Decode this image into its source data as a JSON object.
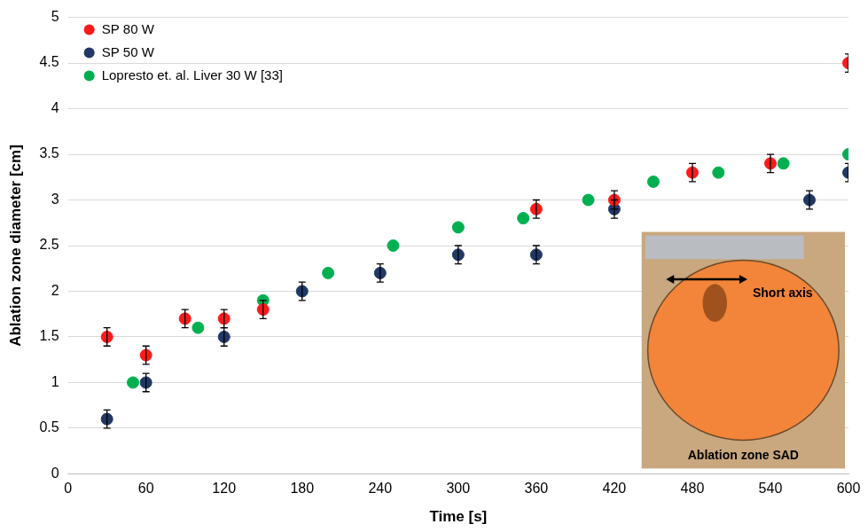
{
  "chart_data": {
    "type": "scatter",
    "x_label": "Time [s]",
    "y_label": "Ablation zone diameter [cm]",
    "xlim": [
      0,
      600
    ],
    "xticks": [
      0,
      60,
      120,
      180,
      240,
      300,
      360,
      420,
      480,
      540,
      600
    ],
    "ylim": [
      0,
      5
    ],
    "yticks": [
      0,
      0.5,
      1,
      1.5,
      2,
      2.5,
      3,
      3.5,
      4,
      4.5,
      5
    ],
    "grid": "y",
    "legend": "upper left",
    "series": [
      {
        "name": "SP 80 W",
        "color": "#ff1a1a",
        "marker": "circle",
        "x": [
          30,
          60,
          90,
          120,
          150,
          360,
          420,
          480,
          540,
          600
        ],
        "values": [
          1.5,
          1.3,
          1.7,
          1.7,
          1.8,
          2.9,
          3.0,
          3.3,
          3.4,
          4.5
        ],
        "errors": [
          0.1,
          0.1,
          0.1,
          0.1,
          0.1,
          0.1,
          0.1,
          0.1,
          0.1,
          0.1
        ]
      },
      {
        "name": "SP 50 W",
        "color": "#203864",
        "marker": "circle",
        "x": [
          30,
          60,
          120,
          180,
          240,
          300,
          360,
          420,
          570,
          600
        ],
        "values": [
          0.6,
          1.0,
          1.5,
          2.0,
          2.2,
          2.4,
          2.4,
          2.9,
          3.0,
          3.3
        ],
        "errors": [
          0.1,
          0.1,
          0.1,
          0.1,
          0.1,
          0.1,
          0.1,
          0.1,
          0.1,
          0.1
        ]
      },
      {
        "name": "Lopresto et. al. Liver 30 W [33]",
        "color": "#00b050",
        "marker": "circle",
        "x": [
          50,
          100,
          150,
          200,
          250,
          300,
          350,
          400,
          450,
          500,
          550,
          600
        ],
        "values": [
          1.0,
          1.6,
          1.9,
          2.2,
          2.5,
          2.7,
          2.8,
          3.0,
          3.2,
          3.3,
          3.4,
          3.5
        ]
      }
    ],
    "annotations": [
      "Short axis",
      "Ablation zone SAD"
    ]
  }
}
